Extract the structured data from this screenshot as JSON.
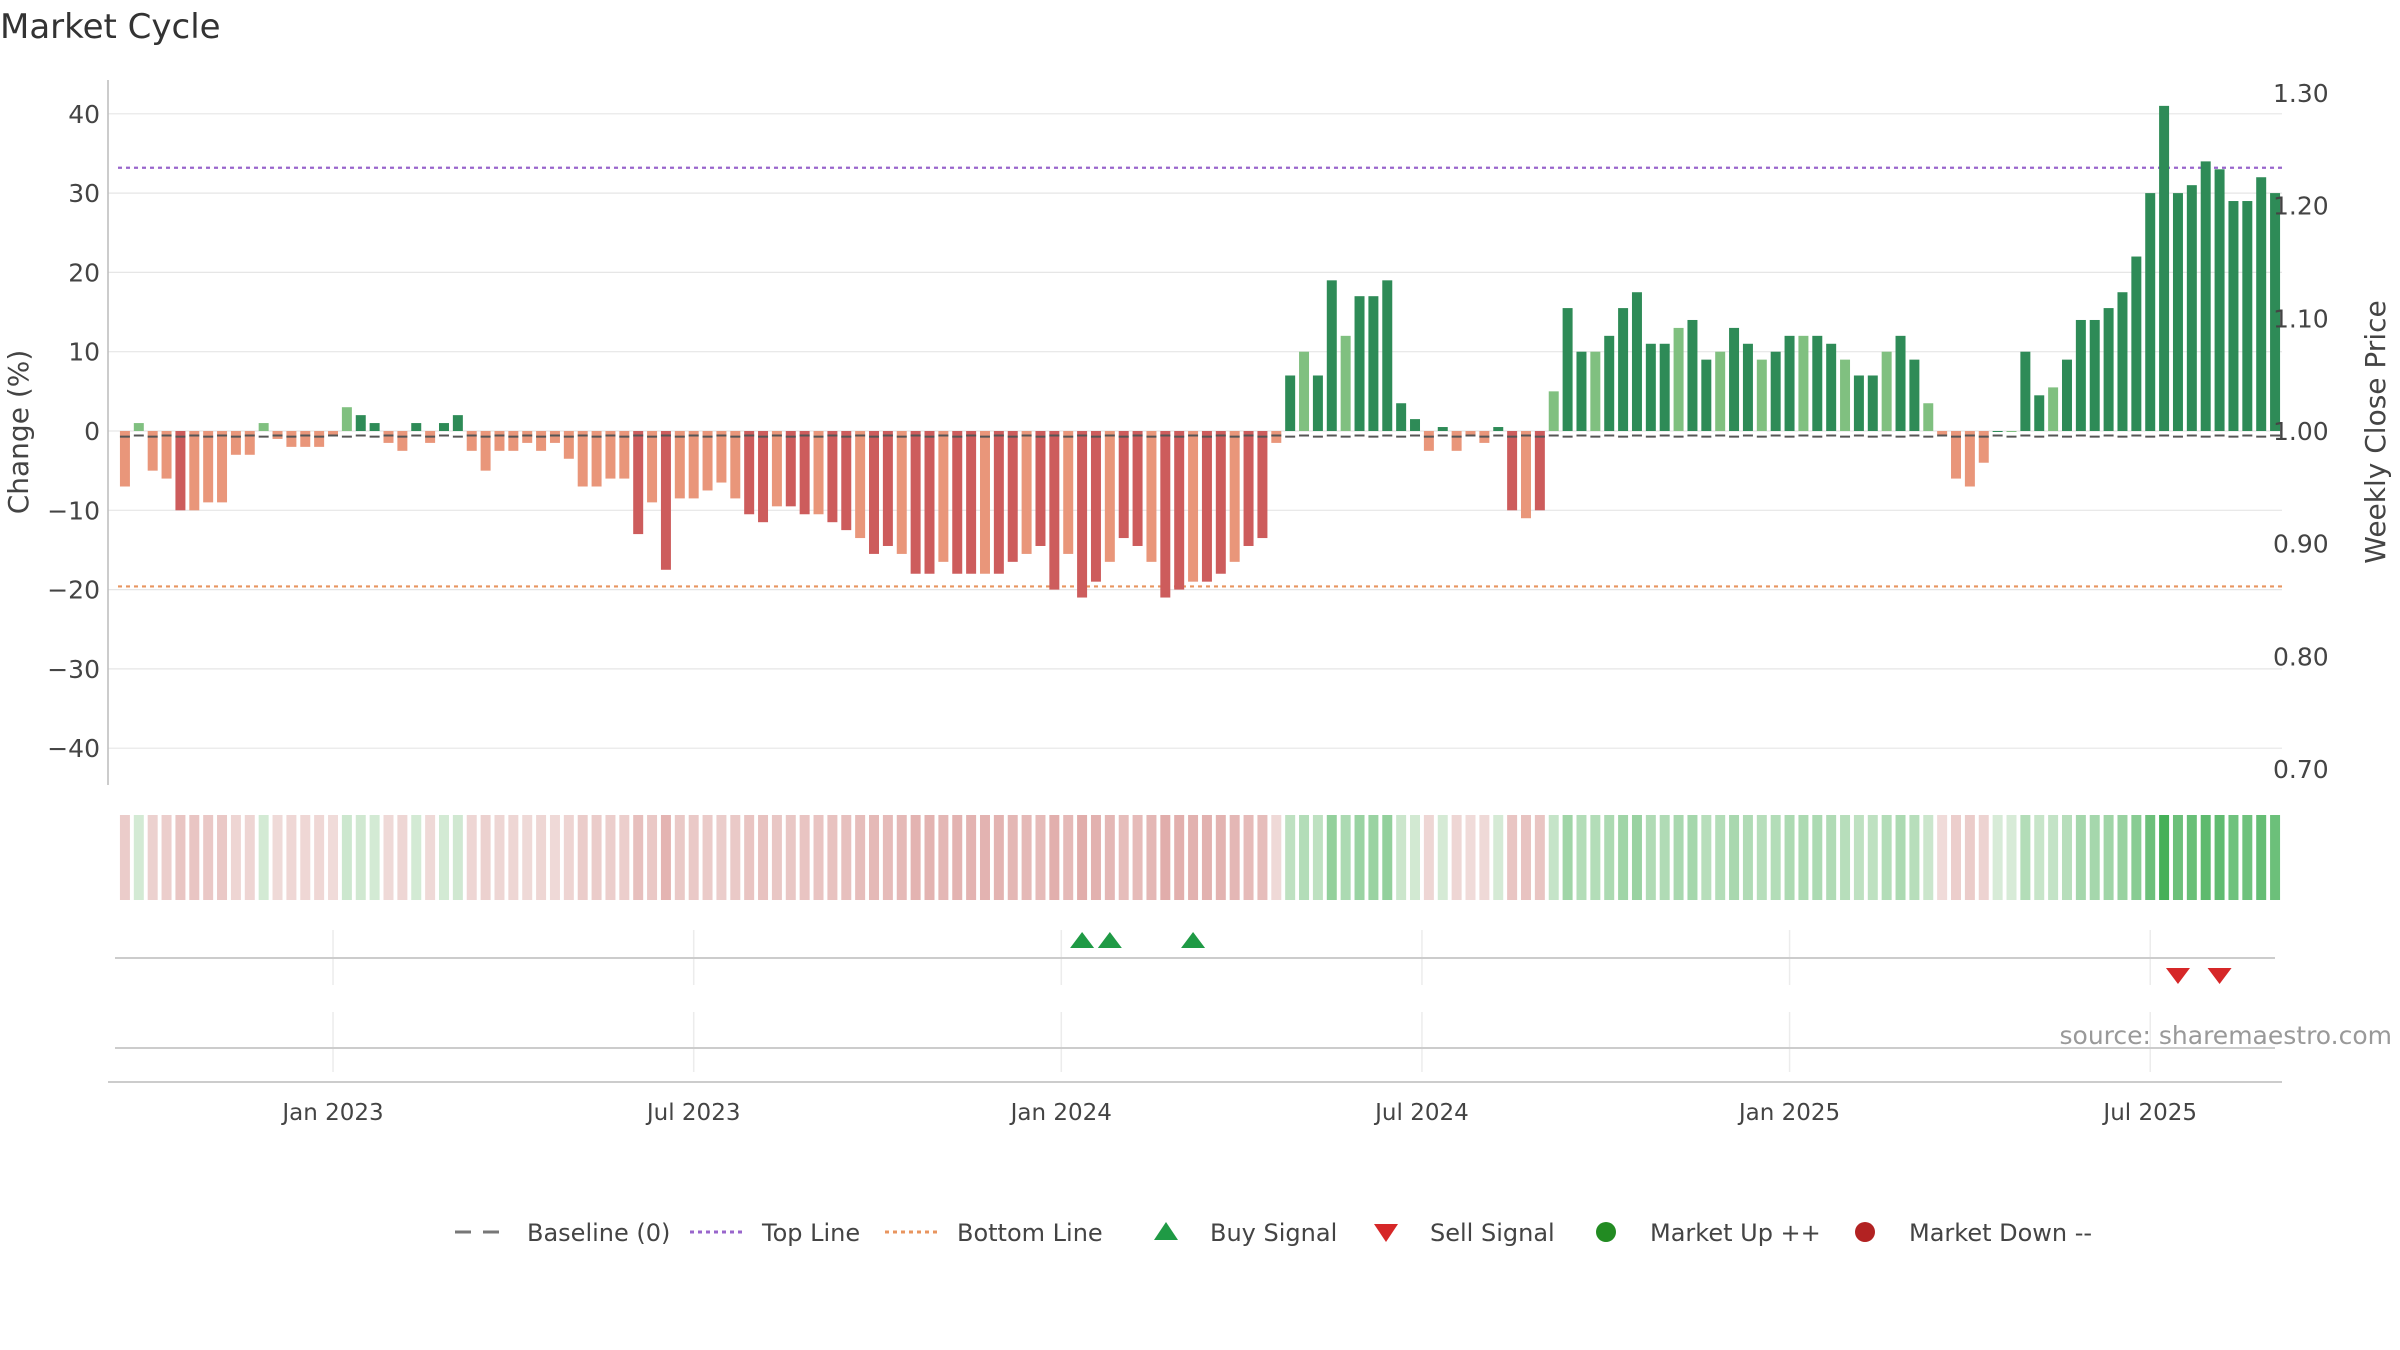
{
  "chart_data": {
    "type": "bar",
    "title": "Market Cycle",
    "ylabel": "Change (%)",
    "y2label": "Weekly Close Price",
    "source": "source: sharemaestro.com",
    "ylim": [
      -44,
      44
    ],
    "y2lim": [
      0.685,
      1.315
    ],
    "yticks": [
      -40,
      -30,
      -20,
      -10,
      0,
      10,
      20,
      30,
      40
    ],
    "y2ticks": [
      0.7,
      0.8,
      0.9,
      1.0,
      1.1,
      1.2,
      1.3
    ],
    "y2tick_labels": [
      "0.70",
      "0.80",
      "0.90",
      "1.00",
      "1.10",
      "1.20",
      "1.30"
    ],
    "top_line": 33.2,
    "bottom_line": -19.6,
    "x_labels": [
      "Jan 2023",
      "Jul 2023",
      "Jan 2024",
      "Jul 2024",
      "Jan 2025",
      "Jul 2025"
    ],
    "x_label_weeks": [
      15,
      41,
      67.5,
      93.5,
      120,
      146
    ],
    "values": [
      -7,
      1,
      -5,
      -6,
      -10,
      -10,
      -9,
      -9,
      -3,
      -3,
      1,
      -1,
      -2,
      -2,
      -2,
      -0.5,
      3,
      2,
      1,
      -1.5,
      -2.5,
      1,
      -1.5,
      1,
      2,
      -2.5,
      -5,
      -2.5,
      -2.5,
      -1.5,
      -2.5,
      -1.5,
      -3.5,
      -7,
      -7,
      -6,
      -6,
      -13,
      -9,
      -17.5,
      -8.5,
      -8.5,
      -7.5,
      -6.5,
      -8.5,
      -10.5,
      -11.5,
      -9.5,
      -9.5,
      -10.5,
      -10.5,
      -11.5,
      -12.5,
      -13.5,
      -15.5,
      -14.5,
      -15.5,
      -18,
      -18,
      -16.5,
      -18,
      -18,
      -18,
      -18,
      -16.5,
      -15.5,
      -14.5,
      -20,
      -15.5,
      -21,
      -19,
      -16.5,
      -13.5,
      -14.5,
      -16.5,
      -21,
      -20,
      -19,
      -19,
      -18,
      -16.5,
      -14.5,
      -13.5,
      -1.5,
      7,
      10,
      7,
      19,
      12,
      17,
      17,
      19,
      3.5,
      1.5,
      -2.5,
      0.5,
      -2.5,
      -0.5,
      -1.5,
      0.5,
      -10,
      -11,
      -10,
      5,
      15.5,
      10,
      10,
      12,
      15.5,
      17.5,
      11,
      11,
      13,
      14,
      9,
      10,
      13,
      11,
      9,
      10,
      12,
      12,
      12,
      11,
      9,
      7,
      7,
      10,
      12,
      9,
      3.5,
      -0.5,
      -6,
      -7,
      -4,
      0,
      0,
      10,
      4.5,
      5.5,
      9,
      14,
      14,
      15.5,
      17.5,
      22,
      30,
      41,
      30,
      31,
      34,
      33,
      29,
      29,
      32,
      30
    ],
    "weekly_close": [
      0.995,
      0.996,
      0.995,
      0.996,
      0.995,
      0.996,
      0.995,
      0.996,
      0.995,
      0.996,
      0.995,
      0.996,
      0.995,
      0.996,
      0.995,
      0.996,
      0.995,
      0.996,
      0.995,
      0.996,
      0.995,
      0.996,
      0.995,
      0.996,
      0.995,
      0.996,
      0.995,
      0.996,
      0.995,
      0.996,
      0.995,
      0.996,
      0.995,
      0.996,
      0.995,
      0.996,
      0.995,
      0.996,
      0.995,
      0.996,
      0.995,
      0.996,
      0.995,
      0.996,
      0.995,
      0.996,
      0.995,
      0.996,
      0.995,
      0.996,
      0.995,
      0.996,
      0.995,
      0.996,
      0.995,
      0.996,
      0.995,
      0.996,
      0.995,
      0.996,
      0.995,
      0.996,
      0.995,
      0.996,
      0.995,
      0.996,
      0.995,
      0.996,
      0.995,
      0.996,
      0.995,
      0.996,
      0.995,
      0.996,
      0.995,
      0.996,
      0.995,
      0.996,
      0.995,
      0.996,
      0.995,
      0.996,
      0.995,
      0.996,
      0.995,
      0.996,
      0.995,
      0.996,
      0.995,
      0.996,
      0.995,
      0.996,
      0.995,
      0.996,
      0.995,
      0.996,
      0.995,
      0.996,
      0.995,
      0.996,
      0.995,
      0.996,
      0.995,
      0.996,
      0.995,
      0.996,
      0.995,
      0.996,
      0.995,
      0.996,
      0.995,
      0.996,
      0.995,
      0.996,
      0.995,
      0.996,
      0.995,
      0.996,
      0.995,
      0.996,
      0.995,
      0.996,
      0.995,
      0.996,
      0.995,
      0.996,
      0.995,
      0.996,
      0.995,
      0.996,
      0.995,
      0.996,
      0.995,
      0.996,
      0.995,
      0.996,
      0.995,
      0.996,
      0.995,
      0.996,
      0.995,
      0.996,
      0.995,
      0.996,
      0.995,
      0.996,
      0.995,
      0.996,
      0.995,
      0.996,
      0.995,
      0.996,
      0.995,
      0.996,
      0.995,
      0.996
    ],
    "buy_signals": [
      69,
      71,
      77
    ],
    "sell_signals": [
      148,
      151
    ],
    "series": [
      {
        "name": "Baseline (0)",
        "style": "dash",
        "color": "#777777"
      },
      {
        "name": "Top Line",
        "style": "dotted",
        "color": "#9966cc"
      },
      {
        "name": "Bottom Line",
        "style": "dotted",
        "color": "#e8955f"
      },
      {
        "name": "Buy Signal",
        "style": "triangle-up",
        "color": "#1f9a45"
      },
      {
        "name": "Sell Signal",
        "style": "triangle-down",
        "color": "#d62728"
      },
      {
        "name": "Market Up ++",
        "style": "circle",
        "color": "#228b22"
      },
      {
        "name": "Market Down --",
        "style": "circle",
        "color": "#b22222"
      }
    ],
    "colors": {
      "pos_strong": "#2e8b57",
      "pos_light": "#80c080",
      "neg_strong": "#cd5c5c",
      "neg_light": "#e9967a",
      "grid": "#e6e6e6",
      "source": "#999999"
    }
  }
}
